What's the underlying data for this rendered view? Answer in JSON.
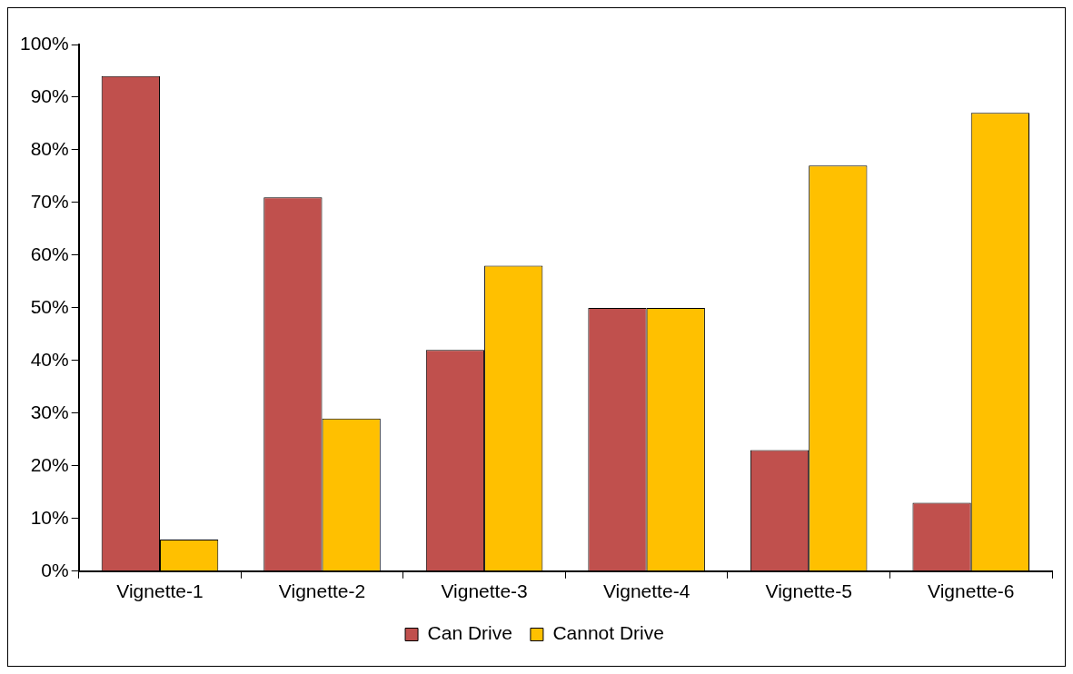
{
  "chart_data": {
    "type": "bar",
    "categories": [
      "Vignette-1",
      "Vignette-2",
      "Vignette-3",
      "Vignette-4",
      "Vignette-5",
      "Vignette-6"
    ],
    "series": [
      {
        "name": "Can Drive",
        "color": "#c0504d",
        "values": [
          94,
          71,
          42,
          50,
          23,
          13
        ]
      },
      {
        "name": "Cannot Drive",
        "color": "#ffc000",
        "values": [
          6,
          29,
          58,
          50,
          77,
          87
        ]
      }
    ],
    "ylim": [
      0,
      100
    ],
    "yticks": [
      {
        "value": 0,
        "label": "0%"
      },
      {
        "value": 10,
        "label": "10%"
      },
      {
        "value": 20,
        "label": "20%"
      },
      {
        "value": 30,
        "label": "30%"
      },
      {
        "value": 40,
        "label": "40%"
      },
      {
        "value": 50,
        "label": "50%"
      },
      {
        "value": 60,
        "label": "60%"
      },
      {
        "value": 70,
        "label": "70%"
      },
      {
        "value": 80,
        "label": "80%"
      },
      {
        "value": 90,
        "label": "90%"
      },
      {
        "value": 100,
        "label": "100%"
      }
    ],
    "grid": false,
    "legend": "bottom"
  }
}
